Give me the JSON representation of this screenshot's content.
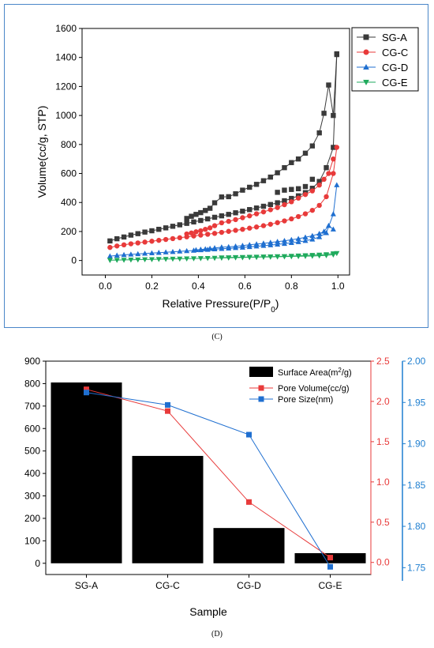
{
  "chart_data": [
    {
      "id": "C",
      "type": "scatter",
      "caption": "(C)",
      "xlabel_main": "Relative Pressure(P/P",
      "xlabel_sub": "0",
      "xlabel_close": ")",
      "ylabel": "Volume(cc/g, STP)",
      "xlim": [
        -0.1,
        1.05
      ],
      "ylim": [
        -100,
        1600
      ],
      "xticks": [
        0.0,
        0.2,
        0.4,
        0.6,
        0.8,
        1.0
      ],
      "xtick_labels": [
        "0.0",
        "0.2",
        "0.4",
        "0.6",
        "0.8",
        "1.0"
      ],
      "yticks": [
        0,
        200,
        400,
        600,
        800,
        1000,
        1200,
        1400,
        1600
      ],
      "ytick_labels": [
        "0",
        "200",
        "400",
        "600",
        "800",
        "1000",
        "1200",
        "1400",
        "1600"
      ],
      "legend_position": "top-right",
      "series": [
        {
          "name": "SG-A",
          "color": "#3a3a3a",
          "marker": "square",
          "adsorption": {
            "x": [
              0.02,
              0.05,
              0.08,
              0.11,
              0.14,
              0.17,
              0.2,
              0.23,
              0.26,
              0.29,
              0.32,
              0.35,
              0.38,
              0.41,
              0.44,
              0.47,
              0.5,
              0.53,
              0.56,
              0.59,
              0.62,
              0.65,
              0.68,
              0.71,
              0.74,
              0.77,
              0.8,
              0.83,
              0.86,
              0.89,
              0.92,
              0.95,
              0.98,
              0.995
            ],
            "y": [
              135,
              150,
              162,
              175,
              185,
              196,
              205,
              215,
              225,
              236,
              246,
              256,
              266,
              276,
              287,
              298,
              308,
              318,
              329,
              340,
              351,
              362,
              374,
              386,
              398,
              412,
              428,
              446,
              468,
              498,
              545,
              640,
              780,
              1420
            ]
          },
          "desorption": {
            "x": [
              0.995,
              0.98,
              0.96,
              0.94,
              0.92,
              0.89,
              0.86,
              0.83,
              0.8,
              0.77,
              0.74,
              0.71,
              0.68,
              0.65,
              0.62,
              0.59,
              0.56,
              0.53,
              0.5,
              0.47,
              0.45,
              0.43,
              0.41,
              0.39,
              0.37,
              0.35
            ],
            "y": [
              1425,
              1000,
              1210,
              1015,
              880,
              790,
              740,
              700,
              675,
              640,
              605,
              575,
              550,
              525,
              505,
              485,
              460,
              440,
              438,
              398,
              360,
              345,
              330,
              318,
              305,
              290
            ]
          },
          "knee_points": {
            "x": [
              0.74,
              0.77,
              0.8,
              0.83,
              0.86,
              0.89
            ],
            "y": [
              470,
              485,
              490,
              495,
              510,
              560
            ]
          }
        },
        {
          "name": "CG-C",
          "color": "#e83a3a",
          "marker": "circle",
          "adsorption": {
            "x": [
              0.02,
              0.05,
              0.08,
              0.11,
              0.14,
              0.17,
              0.2,
              0.23,
              0.26,
              0.29,
              0.32,
              0.35,
              0.38,
              0.41,
              0.44,
              0.47,
              0.5,
              0.53,
              0.56,
              0.59,
              0.62,
              0.65,
              0.68,
              0.71,
              0.74,
              0.77,
              0.8,
              0.83,
              0.86,
              0.89,
              0.92,
              0.95,
              0.98,
              0.995
            ],
            "y": [
              90,
              100,
              108,
              115,
              121,
              127,
              133,
              139,
              145,
              151,
              157,
              163,
              169,
              175,
              181,
              187,
              194,
              201,
              208,
              215,
              223,
              231,
              240,
              250,
              261,
              273,
              287,
              303,
              322,
              346,
              380,
              440,
              600,
              780
            ]
          },
          "desorption": {
            "x": [
              0.98,
              0.96,
              0.94,
              0.92,
              0.89,
              0.86,
              0.83,
              0.8,
              0.77,
              0.74,
              0.71,
              0.68,
              0.65,
              0.62,
              0.59,
              0.56,
              0.53,
              0.5,
              0.47,
              0.45,
              0.43,
              0.41,
              0.39,
              0.37,
              0.35
            ],
            "y": [
              700,
              600,
              560,
              520,
              480,
              455,
              430,
              405,
              385,
              365,
              350,
              335,
              322,
              308,
              295,
              282,
              270,
              260,
              240,
              225,
              215,
              205,
              198,
              190,
              183
            ]
          }
        },
        {
          "name": "CG-D",
          "color": "#1f6fd0",
          "marker": "triangle-up",
          "adsorption": {
            "x": [
              0.02,
              0.05,
              0.08,
              0.11,
              0.14,
              0.17,
              0.2,
              0.23,
              0.26,
              0.29,
              0.32,
              0.35,
              0.38,
              0.41,
              0.44,
              0.47,
              0.5,
              0.53,
              0.56,
              0.59,
              0.62,
              0.65,
              0.68,
              0.71,
              0.74,
              0.77,
              0.8,
              0.83,
              0.86,
              0.89,
              0.92,
              0.95,
              0.98,
              0.995
            ],
            "y": [
              30,
              35,
              39,
              42,
              45,
              48,
              51,
              54,
              57,
              60,
              63,
              66,
              69,
              72,
              75,
              78,
              81,
              84,
              87,
              90,
              94,
              98,
              102,
              106,
              111,
              116,
              122,
              128,
              136,
              146,
              162,
              190,
              320,
              520
            ]
          },
          "desorption": {
            "x": [
              0.98,
              0.96,
              0.94,
              0.92,
              0.89,
              0.86,
              0.83,
              0.8,
              0.77,
              0.74,
              0.71,
              0.68,
              0.65,
              0.62,
              0.59,
              0.56,
              0.53,
              0.5,
              0.47,
              0.45,
              0.43,
              0.41,
              0.39
            ],
            "y": [
              215,
              240,
              200,
              185,
              170,
              160,
              150,
              143,
              136,
              130,
              124,
              118,
              113,
              108,
              103,
              98,
              94,
              92,
              86,
              82,
              79,
              76,
              73
            ]
          }
        },
        {
          "name": "CG-E",
          "color": "#1faa5c",
          "marker": "triangle-down",
          "adsorption": {
            "x": [
              0.02,
              0.05,
              0.08,
              0.11,
              0.14,
              0.17,
              0.2,
              0.23,
              0.26,
              0.29,
              0.32,
              0.35,
              0.38,
              0.41,
              0.44,
              0.47,
              0.5,
              0.53,
              0.56,
              0.59,
              0.62,
              0.65,
              0.68,
              0.71,
              0.74,
              0.77,
              0.8,
              0.83,
              0.86,
              0.89,
              0.92,
              0.95,
              0.98,
              0.995
            ],
            "y": [
              2,
              3,
              4,
              5,
              6,
              7,
              8,
              9,
              10,
              11,
              12,
              13,
              14,
              15,
              16,
              17,
              18,
              19,
              20,
              21,
              22,
              23,
              24,
              25,
              26,
              27,
              28,
              29,
              30,
              31,
              33,
              35,
              40,
              50
            ]
          },
          "desorption": {
            "x": [
              0.98,
              0.95,
              0.92,
              0.89,
              0.86,
              0.83,
              0.8,
              0.77,
              0.74,
              0.71,
              0.68,
              0.65,
              0.62,
              0.59,
              0.56,
              0.53,
              0.5
            ],
            "y": [
              48,
              42,
              39,
              37,
              35,
              33,
              31,
              29,
              28,
              27,
              26,
              25,
              24,
              23,
              22,
              21,
              20
            ]
          }
        }
      ]
    },
    {
      "id": "D",
      "type": "bar",
      "caption": "(D)",
      "xlabel": "Sample",
      "categories": [
        "SG-A",
        "CG-C",
        "CG-D",
        "CG-E"
      ],
      "bars": {
        "name_main": "Surface Area(m",
        "name_sup": "2",
        "name_close": "/g)",
        "values": [
          805,
          478,
          157,
          45
        ],
        "color": "#000000"
      },
      "y_left": {
        "lim": [
          -50,
          900
        ],
        "ticks": [
          0,
          100,
          200,
          300,
          400,
          500,
          600,
          700,
          800,
          900
        ],
        "tick_labels": [
          "0",
          "100",
          "200",
          "300",
          "400",
          "500",
          "600",
          "700",
          "800",
          "900"
        ],
        "color": "#000000"
      },
      "y_right1": {
        "lim": [
          -0.15,
          2.5
        ],
        "ticks": [
          0.0,
          0.5,
          1.0,
          1.5,
          2.0,
          2.5
        ],
        "tick_labels": [
          "0.0",
          "0.5",
          "1.0",
          "1.5",
          "2.0",
          "2.5"
        ],
        "color": "#e83a3a"
      },
      "y_right2": {
        "lim": [
          1.7417,
          2.0
        ],
        "ticks": [
          1.75,
          1.8,
          1.85,
          1.9,
          1.95,
          2.0
        ],
        "tick_labels": [
          "1.75",
          "1.80",
          "1.85",
          "1.90",
          "1.95",
          "2.00"
        ],
        "color": "#1f7fd0"
      },
      "lines": [
        {
          "name": "Pore Volume(cc/g)",
          "axis": "y_right1",
          "color": "#e83a3a",
          "values": [
            2.15,
            1.88,
            0.75,
            0.06
          ]
        },
        {
          "name": "Pore Size(nm)",
          "axis": "y_right2",
          "color": "#1f6fd0",
          "values": [
            1.962,
            1.947,
            1.911,
            1.751
          ]
        }
      ],
      "legend_position": "top-right"
    }
  ]
}
